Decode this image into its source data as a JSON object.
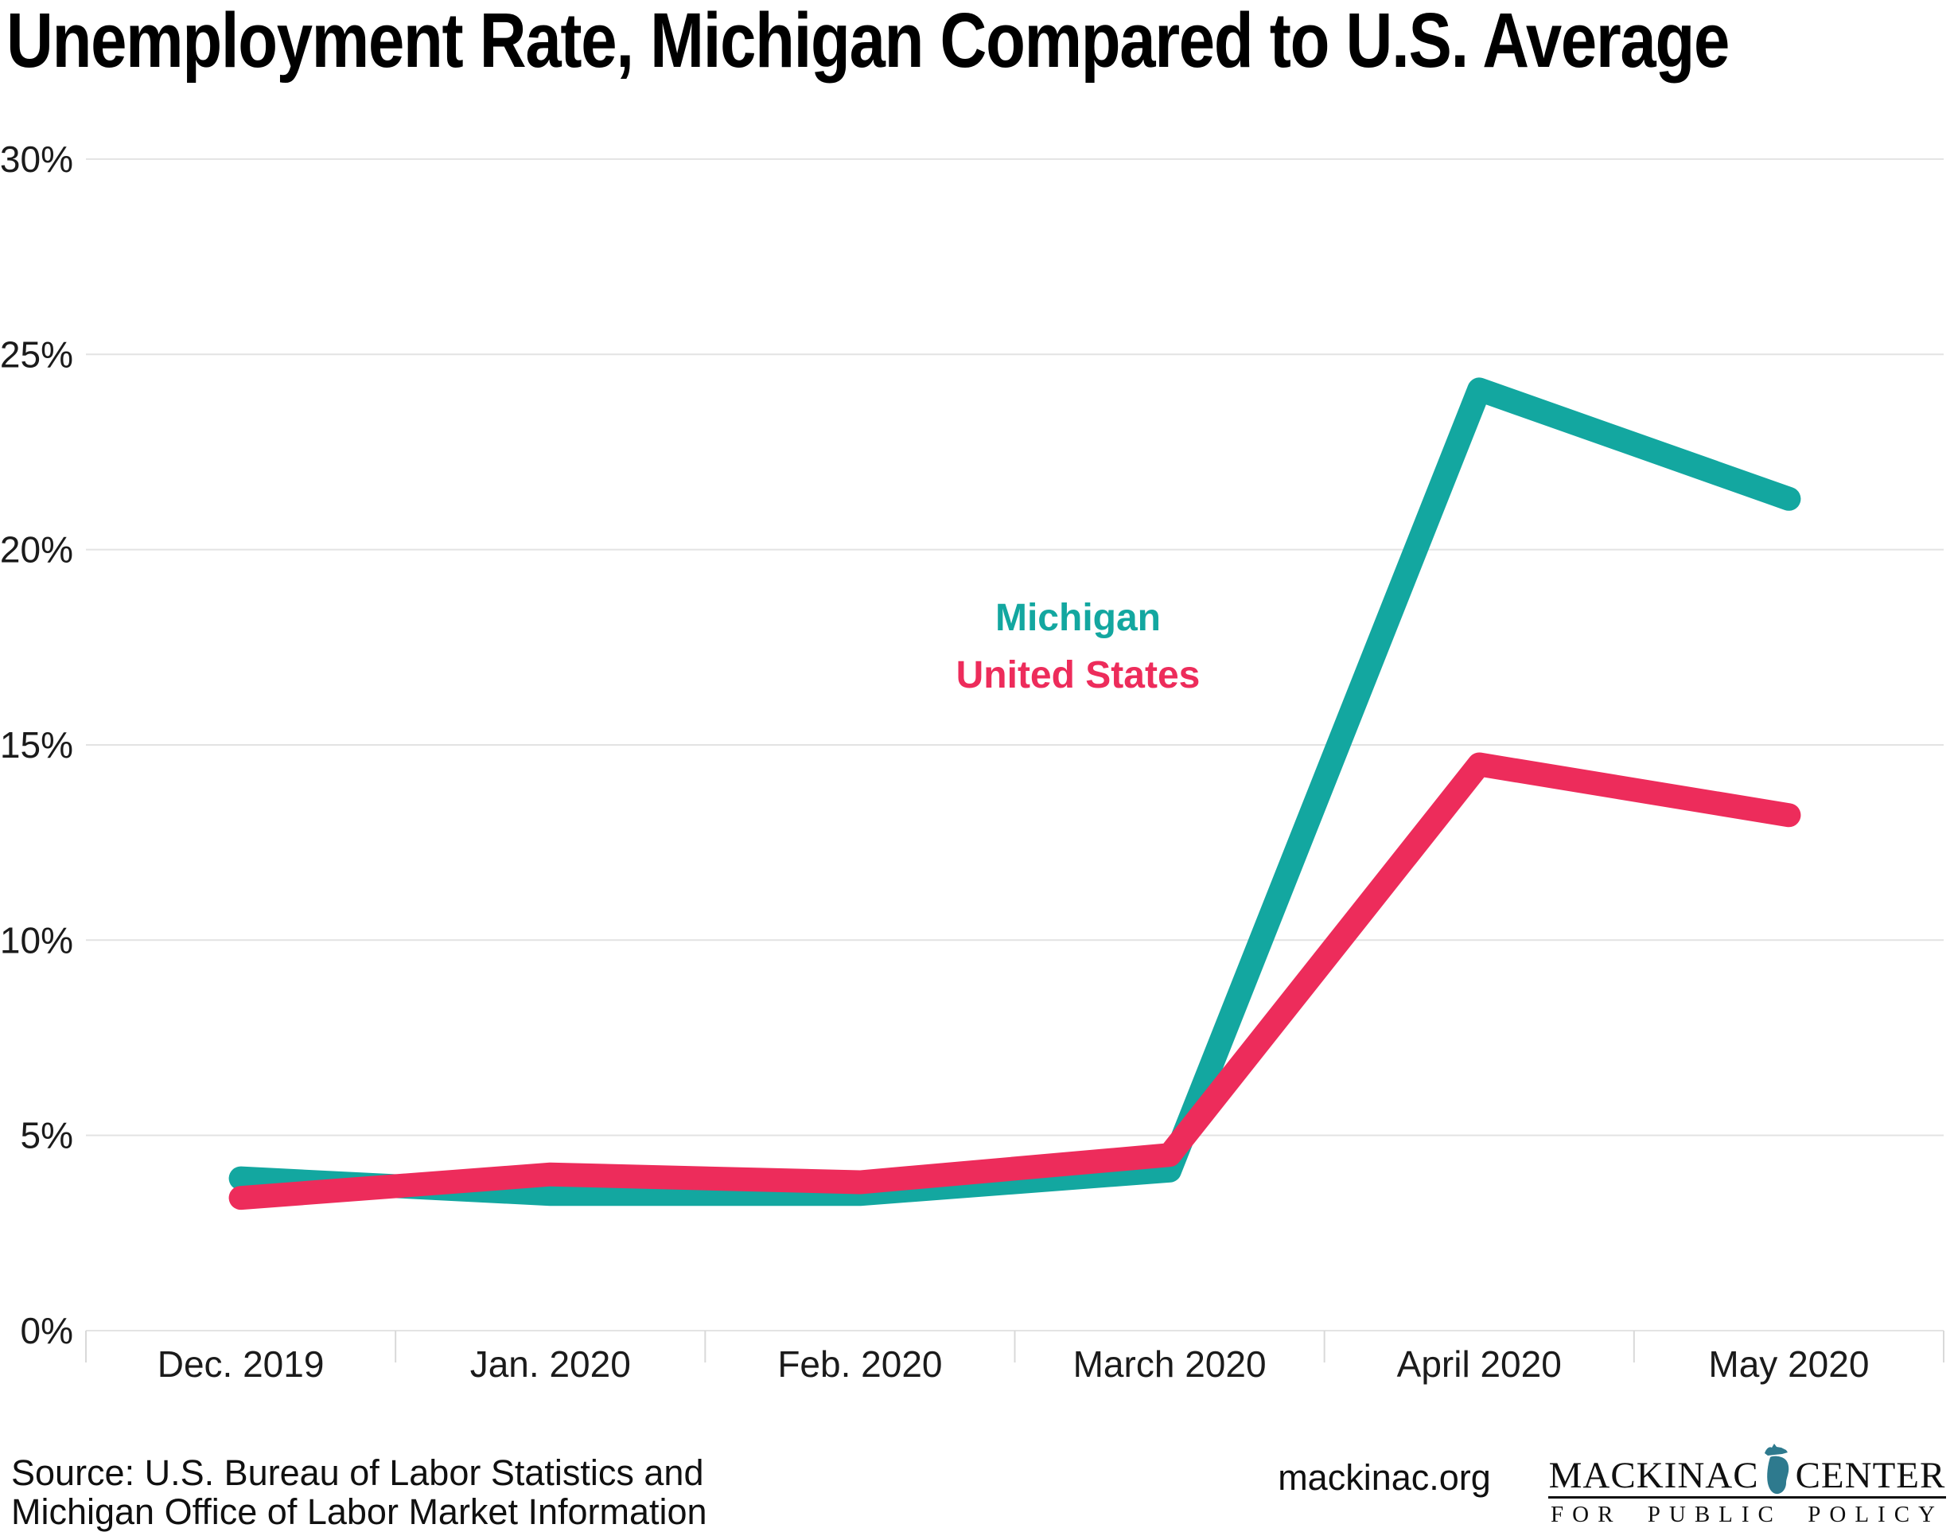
{
  "chart_data": {
    "type": "line",
    "title": "Unemployment Rate, Michigan Compared to U.S. Average",
    "categories": [
      "Dec. 2019",
      "Jan. 2020",
      "Feb. 2020",
      "March 2020",
      "April 2020",
      "May 2020"
    ],
    "series": [
      {
        "name": "Michigan",
        "color": "#13A7A0",
        "values": [
          3.9,
          3.5,
          3.5,
          4.1,
          24.1,
          21.3
        ]
      },
      {
        "name": "United States",
        "color": "#ED2C5B",
        "values": [
          3.4,
          4.0,
          3.8,
          4.5,
          14.5,
          13.2
        ]
      }
    ],
    "xlabel": "",
    "ylabel": "",
    "ylim": [
      0,
      30
    ],
    "yticks": [
      0,
      5,
      10,
      15,
      20,
      25,
      30
    ],
    "ytick_labels": [
      "0%",
      "5%",
      "10%",
      "15%",
      "20%",
      "25%",
      "30%"
    ],
    "grid": "horizontal",
    "gridline_color": "#E3E3E3",
    "tick_color": "#D9D9D9",
    "legend_position": "inside-center"
  },
  "footer": {
    "source_line1": "Source: U.S. Bureau of Labor Statistics and",
    "source_line2": "Michigan Office of Labor Market Information",
    "website": "mackinac.org",
    "logo": {
      "name_left": "MACKINAC",
      "name_right": "CENTER",
      "tagline_words": [
        "FOR",
        "PUBLIC",
        "POLICY"
      ],
      "michigan_glyph_color": "#2E7A8E"
    }
  }
}
